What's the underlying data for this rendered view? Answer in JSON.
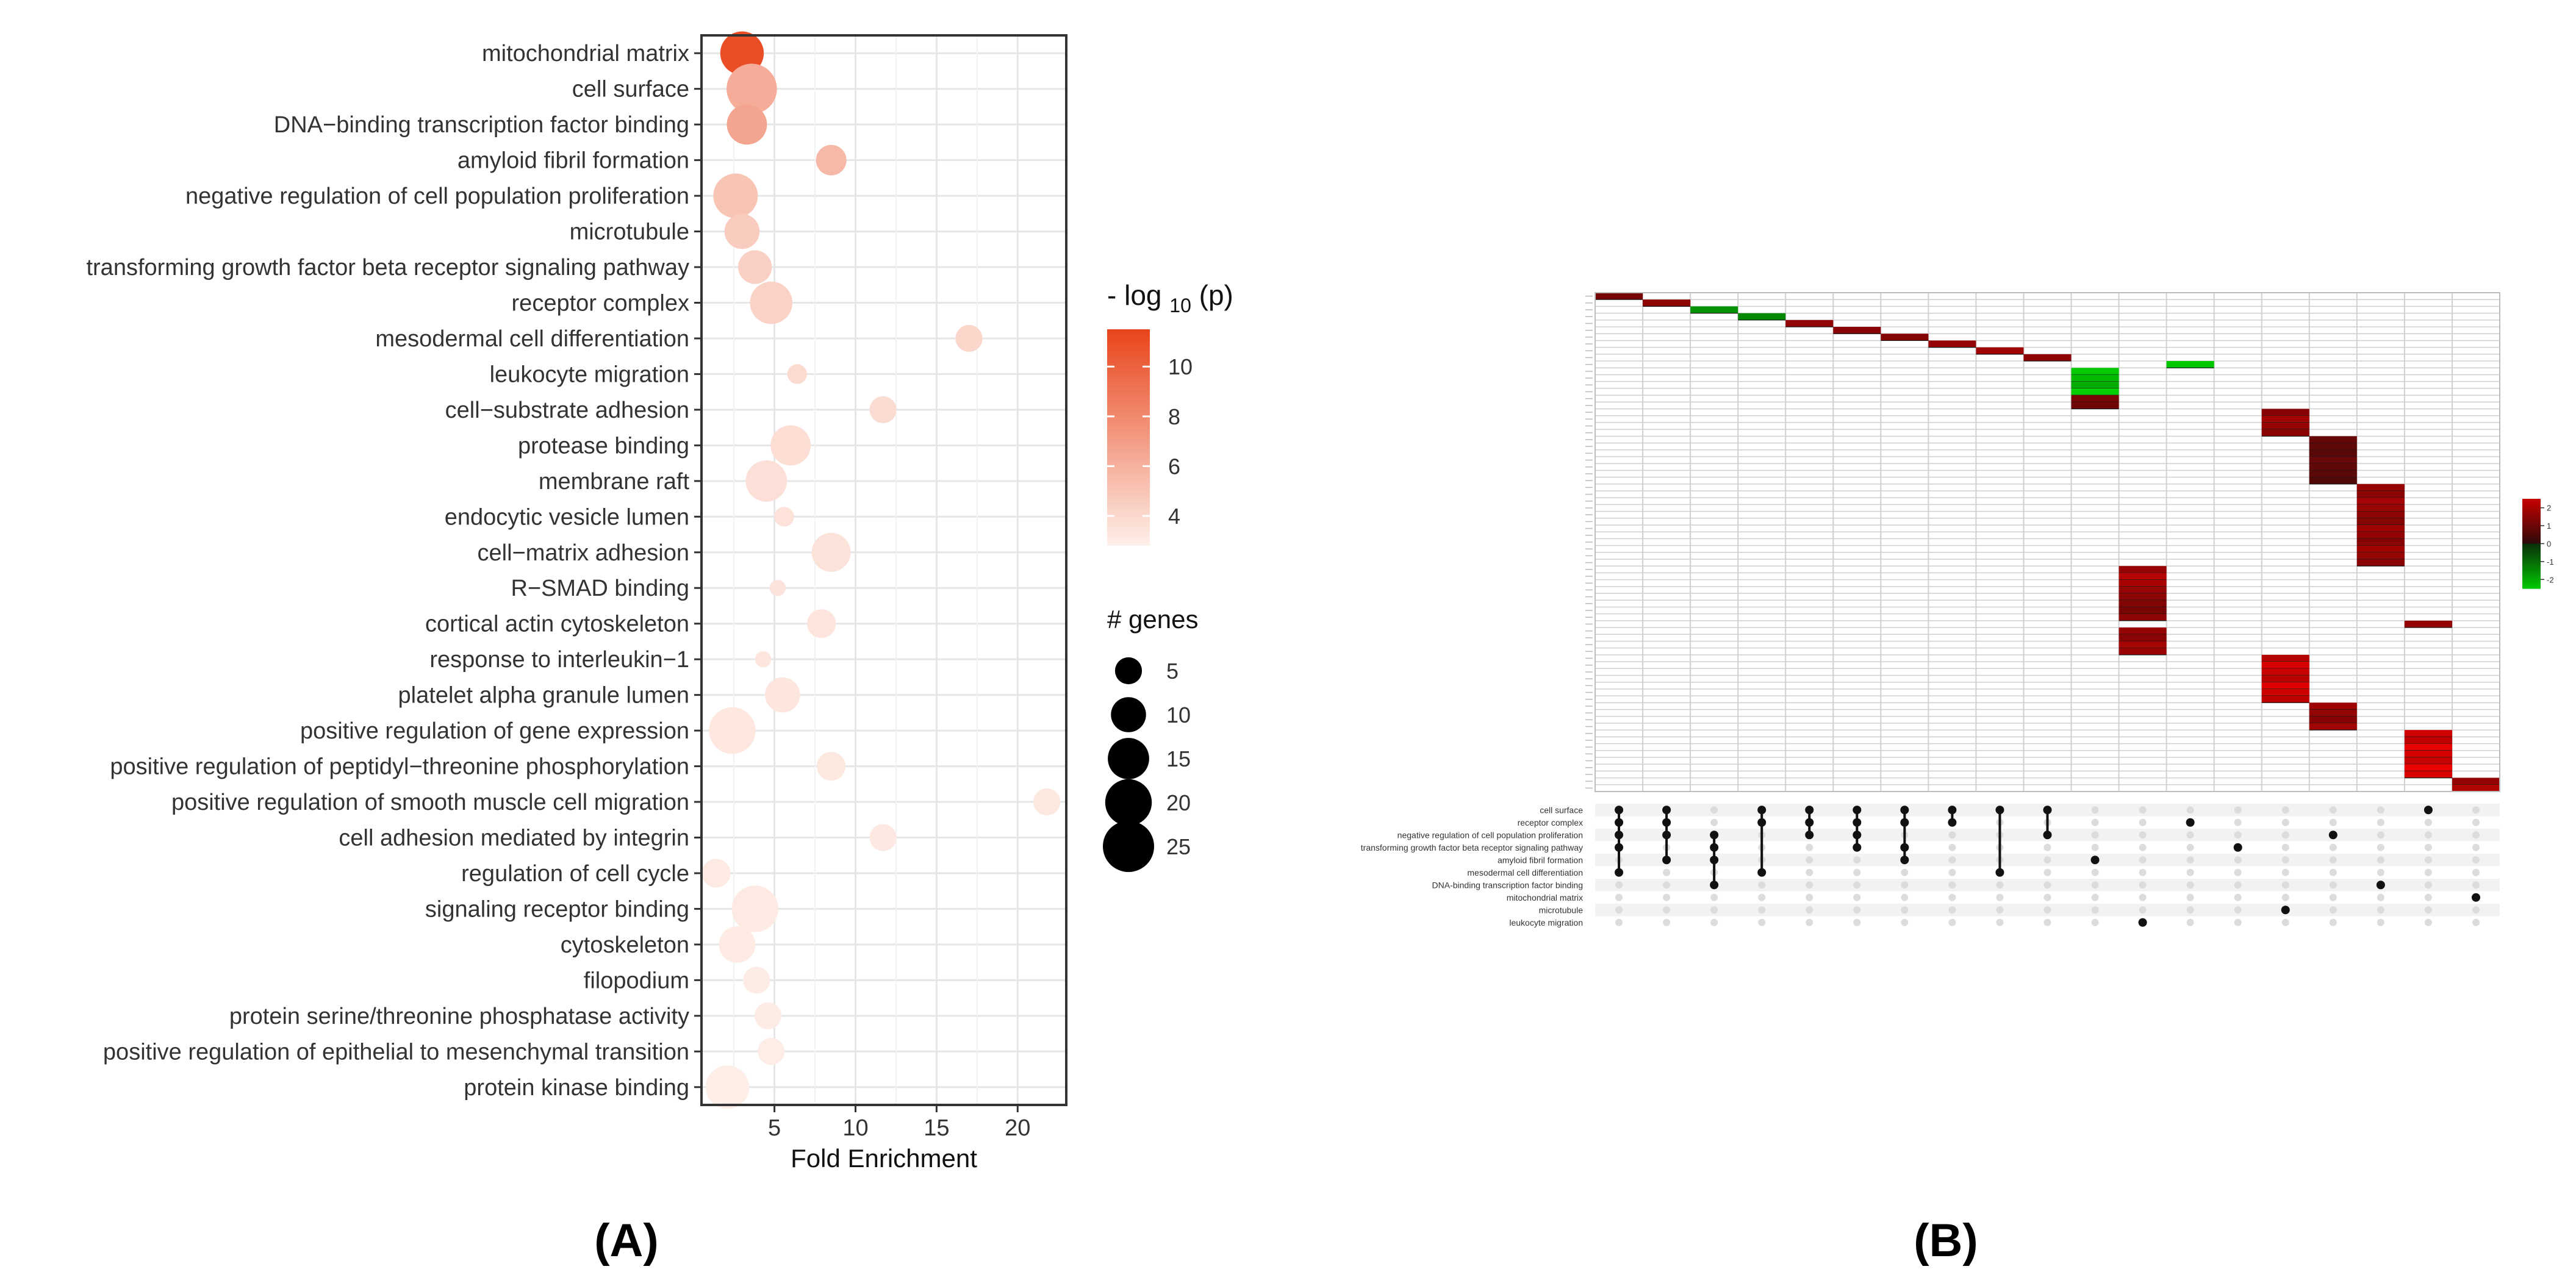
{
  "panels": {
    "a_label": "(A)",
    "b_label": "(B)"
  },
  "chart_data": [
    {
      "type": "scatter",
      "panel": "A",
      "xlabel": "Fold Enrichment",
      "ylabel": "",
      "xlim": [
        0.5,
        23
      ],
      "xticks": [
        5,
        10,
        15,
        20
      ],
      "grid": true,
      "color_legend": {
        "title_prefix": "- log",
        "title_sub": "10",
        "title_suffix": "(p)",
        "min": 2.8,
        "max": 11.5,
        "ticks": [
          4,
          6,
          8,
          10
        ],
        "low_color": "#fef0ea",
        "high_color": "#e8441a"
      },
      "size_legend": {
        "title": "# genes",
        "values": [
          5,
          10,
          15,
          20,
          25
        ]
      },
      "points": [
        {
          "term": "mitochondrial matrix",
          "x": 3.0,
          "genes": 17,
          "p": 11.0
        },
        {
          "term": "cell surface",
          "x": 3.6,
          "genes": 24,
          "p": 6.2
        },
        {
          "term": "DNA−binding transcription factor binding",
          "x": 3.3,
          "genes": 14,
          "p": 6.6
        },
        {
          "term": "amyloid fibril formation",
          "x": 8.5,
          "genes": 7,
          "p": 5.6
        },
        {
          "term": "negative regulation of cell population proliferation",
          "x": 2.6,
          "genes": 18,
          "p": 5.0
        },
        {
          "term": "microtubule",
          "x": 3.0,
          "genes": 10,
          "p": 4.6
        },
        {
          "term": "transforming growth factor beta receptor signaling pathway",
          "x": 3.8,
          "genes": 9,
          "p": 4.4
        },
        {
          "term": "receptor complex",
          "x": 4.8,
          "genes": 16,
          "p": 4.3
        },
        {
          "term": "mesodermal cell differentiation",
          "x": 17.0,
          "genes": 5,
          "p": 4.1
        },
        {
          "term": "leukocyte migration",
          "x": 6.4,
          "genes": 2,
          "p": 3.9
        },
        {
          "term": "cell−substrate adhesion",
          "x": 11.7,
          "genes": 5,
          "p": 3.8
        },
        {
          "term": "protease binding",
          "x": 6.0,
          "genes": 14,
          "p": 3.7
        },
        {
          "term": "membrane raft",
          "x": 4.5,
          "genes": 15,
          "p": 3.6
        },
        {
          "term": "endocytic vesicle lumen",
          "x": 5.6,
          "genes": 2,
          "p": 3.5
        },
        {
          "term": "cell−matrix adhesion",
          "x": 8.5,
          "genes": 13,
          "p": 3.45
        },
        {
          "term": "R−SMAD binding",
          "x": 5.2,
          "genes": 1,
          "p": 3.4
        },
        {
          "term": "cortical actin cytoskeleton",
          "x": 7.9,
          "genes": 6,
          "p": 3.35
        },
        {
          "term": "response to interleukin−1",
          "x": 4.3,
          "genes": 1,
          "p": 3.3
        },
        {
          "term": "platelet alpha granule lumen",
          "x": 5.5,
          "genes": 10,
          "p": 3.3
        },
        {
          "term": "positive regulation of gene expression",
          "x": 2.4,
          "genes": 20,
          "p": 3.25
        },
        {
          "term": "positive regulation of peptidyl−threonine phosphorylation",
          "x": 8.5,
          "genes": 6,
          "p": 3.2
        },
        {
          "term": "positive regulation of smooth muscle cell migration",
          "x": 21.8,
          "genes": 5,
          "p": 3.2
        },
        {
          "term": "cell adhesion mediated by integrin",
          "x": 11.7,
          "genes": 5,
          "p": 3.15
        },
        {
          "term": "regulation of cell cycle",
          "x": 1.4,
          "genes": 6,
          "p": 3.1
        },
        {
          "term": "signaling receptor binding",
          "x": 3.8,
          "genes": 20,
          "p": 3.1
        },
        {
          "term": "cytoskeleton",
          "x": 2.7,
          "genes": 11,
          "p": 3.05
        },
        {
          "term": "filopodium",
          "x": 3.9,
          "genes": 5,
          "p": 3.0
        },
        {
          "term": "protein serine/threonine phosphatase activity",
          "x": 4.6,
          "genes": 5,
          "p": 3.0
        },
        {
          "term": "positive regulation of epithelial to mesenchymal transition",
          "x": 4.8,
          "genes": 5,
          "p": 2.95
        },
        {
          "term": "protein kinase binding",
          "x": 2.1,
          "genes": 17,
          "p": 2.9
        }
      ]
    },
    {
      "type": "heatmap",
      "panel": "B",
      "title": "",
      "set_labels": [
        "cell surface",
        "receptor complex",
        "negative regulation of cell population proliferation",
        "transforming growth factor beta receptor signaling pathway",
        "amyloid fibril formation",
        "mesodermal cell differentiation",
        "DNA-binding transcription factor binding",
        "mitochondrial matrix",
        "microtubule",
        "leukocyte migration"
      ],
      "intersections": [
        [
          0,
          1,
          2,
          3,
          5
        ],
        [
          0,
          1,
          2,
          4
        ],
        [
          2,
          3,
          4,
          6
        ],
        [
          0,
          1,
          5
        ],
        [
          0,
          1,
          2
        ],
        [
          0,
          1,
          2,
          3
        ],
        [
          0,
          1,
          3,
          4
        ],
        [
          0,
          1
        ],
        [
          0,
          5
        ],
        [
          0,
          2
        ],
        [
          4
        ],
        [
          9
        ],
        [
          1
        ],
        [
          3
        ],
        [
          8
        ],
        [
          2
        ],
        [
          6
        ],
        [
          0
        ],
        [
          7
        ]
      ],
      "block_rows": [
        1,
        1,
        1,
        1,
        1,
        1,
        1,
        1,
        1,
        1,
        1,
        4,
        2,
        4,
        7,
        12,
        3,
        5,
        1,
        4,
        7,
        4,
        7,
        2
      ],
      "block_values": [
        1.2,
        1.2,
        -1.4,
        -1.4,
        1.2,
        1.2,
        1.3,
        1.2,
        1.5,
        1.4,
        -2.5,
        -2.0,
        1.0,
        1.4,
        0.6,
        1.4,
        1.6,
        1.2,
        1.3,
        1.5,
        2.2,
        1.4,
        2.3,
        1.6
      ],
      "block_cols": [
        0,
        1,
        2,
        3,
        4,
        5,
        6,
        7,
        8,
        9,
        12,
        10,
        10,
        14,
        15,
        16,
        11,
        11,
        17,
        11,
        14,
        15,
        17,
        18
      ],
      "scale_ticks": [
        2,
        1,
        0,
        -1,
        -2
      ]
    }
  ]
}
